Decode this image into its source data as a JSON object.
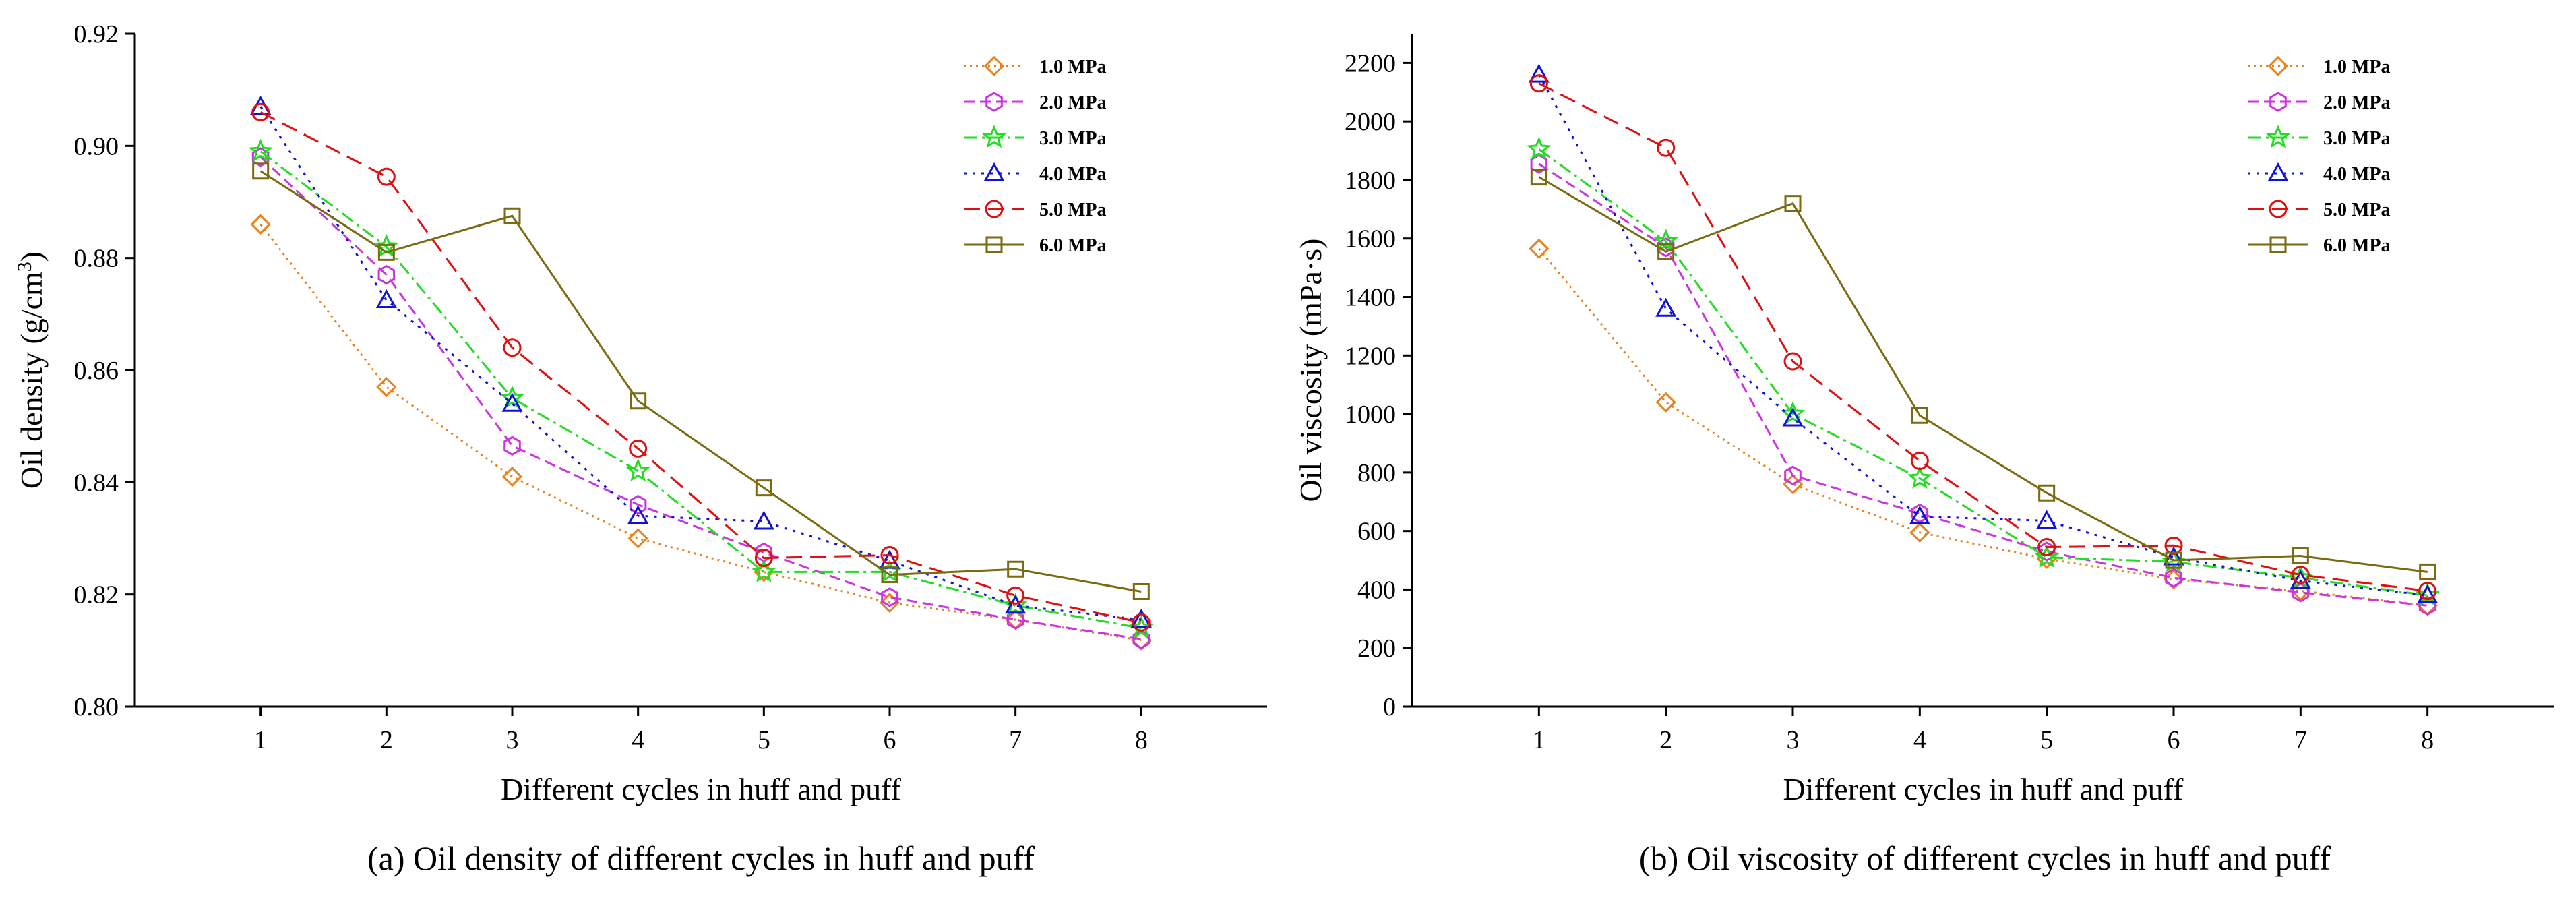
{
  "chart_data": [
    {
      "type": "line",
      "id": "density",
      "caption": "(a) Oil density of different cycles in huff and puff",
      "xlabel": "Different cycles in huff and puff",
      "ylabel": "Oil density (g/cm",
      "ylabel_sup": "3",
      "ylabel_end": ")",
      "xlim": [
        0,
        9
      ],
      "ylim": [
        0.8,
        0.92
      ],
      "x_ticks": [
        1,
        2,
        3,
        4,
        5,
        6,
        7,
        8
      ],
      "y_ticks": [
        "0.80",
        "0.82",
        "0.84",
        "0.86",
        "0.88",
        "0.90",
        "0.92"
      ],
      "x": [
        1,
        2,
        3,
        4,
        5,
        6,
        7,
        8
      ],
      "legend_position": "top-right",
      "series": [
        {
          "name": "1.0 MPa",
          "values": [
            0.886,
            0.857,
            0.841,
            0.83,
            0.824,
            0.8185,
            0.8155,
            0.8118
          ]
        },
        {
          "name": "2.0 MPa",
          "values": [
            0.898,
            0.877,
            0.8465,
            0.836,
            0.8275,
            0.8195,
            0.8155,
            0.812
          ]
        },
        {
          "name": "3.0 MPa",
          "values": [
            0.899,
            0.882,
            0.855,
            0.842,
            0.824,
            0.824,
            0.818,
            0.814
          ]
        },
        {
          "name": "4.0 MPa",
          "values": [
            0.907,
            0.8725,
            0.854,
            0.834,
            0.833,
            0.826,
            0.818,
            0.8155
          ]
        },
        {
          "name": "5.0 MPa",
          "values": [
            0.906,
            0.8945,
            0.864,
            0.846,
            0.8265,
            0.827,
            0.8198,
            0.815
          ]
        },
        {
          "name": "6.0 MPa",
          "values": [
            0.8955,
            0.881,
            0.8875,
            0.8545,
            0.839,
            0.8235,
            0.8245,
            0.8205
          ]
        }
      ]
    },
    {
      "type": "line",
      "id": "viscosity",
      "caption": "(b) Oil viscosity of different cycles in huff and puff",
      "xlabel": "Different cycles in huff and puff",
      "ylabel": "Oil viscosity (mPa·s)",
      "xlim": [
        0,
        9
      ],
      "ylim": [
        0,
        2300
      ],
      "x_ticks": [
        1,
        2,
        3,
        4,
        5,
        6,
        7,
        8
      ],
      "y_ticks": [
        "0",
        "200",
        "400",
        "600",
        "800",
        "1000",
        "1200",
        "1400",
        "1600",
        "1800",
        "2000",
        "2200"
      ],
      "x": [
        1,
        2,
        3,
        4,
        5,
        6,
        7,
        8
      ],
      "legend_position": "top-right",
      "series": [
        {
          "name": "1.0 MPa",
          "values": [
            1565,
            1040,
            760,
            595,
            505,
            435,
            395,
            345
          ]
        },
        {
          "name": "2.0 MPa",
          "values": [
            1855,
            1570,
            790,
            660,
            530,
            440,
            390,
            345
          ]
        },
        {
          "name": "3.0 MPa",
          "values": [
            1905,
            1590,
            1000,
            780,
            510,
            495,
            440,
            380
          ]
        },
        {
          "name": "4.0 MPa",
          "values": [
            2160,
            1360,
            985,
            650,
            635,
            510,
            430,
            380
          ]
        },
        {
          "name": "5.0 MPa",
          "values": [
            2130,
            1910,
            1180,
            840,
            545,
            550,
            450,
            395
          ]
        },
        {
          "name": "6.0 MPa",
          "values": [
            1810,
            1555,
            1720,
            995,
            730,
            500,
            515,
            460
          ]
        }
      ]
    }
  ],
  "styles": [
    {
      "color": "#e8821e",
      "dash": "3,6",
      "marker": "diamond"
    },
    {
      "color": "#cc33e0",
      "dash": "16,8",
      "marker": "hexagon"
    },
    {
      "color": "#22dd22",
      "dash": "20,7,4,7",
      "marker": "star"
    },
    {
      "color": "#1010dd",
      "dash": "4,9",
      "marker": "triangle"
    },
    {
      "color": "#e01010",
      "dash": "24,12",
      "marker": "circle"
    },
    {
      "color": "#7a6a10",
      "dash": "",
      "marker": "square"
    }
  ]
}
